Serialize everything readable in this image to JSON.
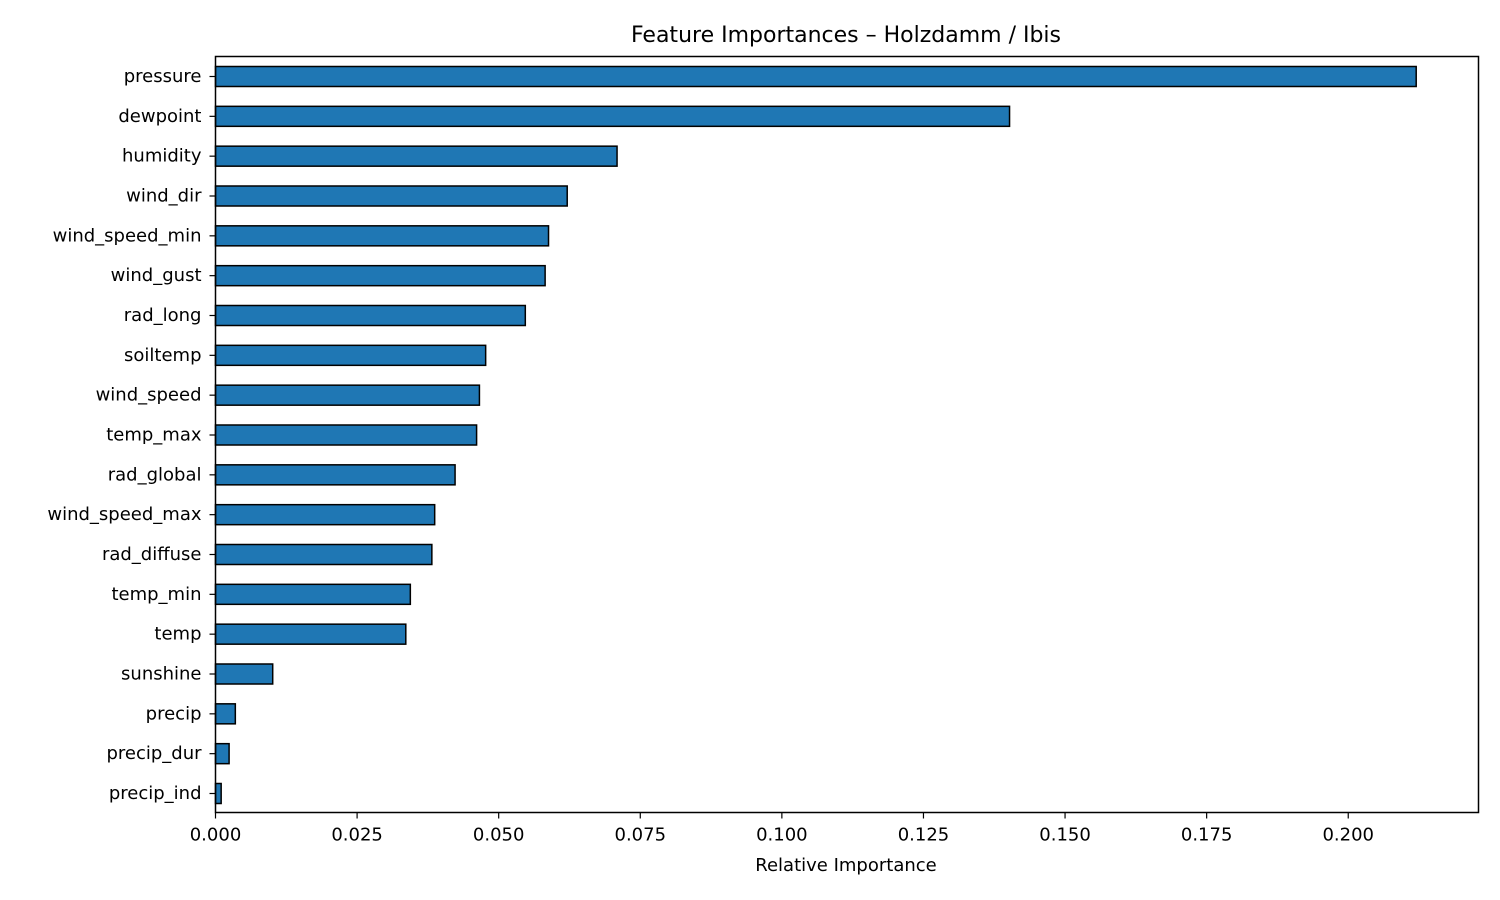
{
  "chart_data": {
    "type": "bar",
    "orientation": "horizontal",
    "title": "Feature Importances – Holzdamm / Ibis",
    "xlabel": "Relative Importance",
    "ylabel": "",
    "categories": [
      "pressure",
      "dewpoint",
      "humidity",
      "wind_dir",
      "wind_speed_min",
      "wind_gust",
      "rad_long",
      "soiltemp",
      "wind_speed",
      "temp_max",
      "rad_global",
      "wind_speed_max",
      "rad_diffuse",
      "temp_min",
      "temp",
      "sunshine",
      "precip",
      "precip_dur",
      "precip_ind"
    ],
    "values": [
      0.212,
      0.1402,
      0.0709,
      0.0621,
      0.0588,
      0.0582,
      0.0547,
      0.0477,
      0.0466,
      0.0461,
      0.0423,
      0.0387,
      0.0382,
      0.0344,
      0.0336,
      0.0101,
      0.0035,
      0.0024,
      0.001
    ],
    "xlim": [
      0,
      0.223
    ],
    "xticks": [
      0.0,
      0.025,
      0.05,
      0.075,
      0.1,
      0.125,
      0.15,
      0.175,
      0.2
    ],
    "xtick_labels": [
      "0.000",
      "0.025",
      "0.050",
      "0.075",
      "0.100",
      "0.125",
      "0.150",
      "0.175",
      "0.200"
    ],
    "grid": false,
    "legend": "none",
    "colors": {
      "bar_fill": "#1f77b4",
      "bar_edge": "#000000",
      "axis": "#000000"
    }
  }
}
